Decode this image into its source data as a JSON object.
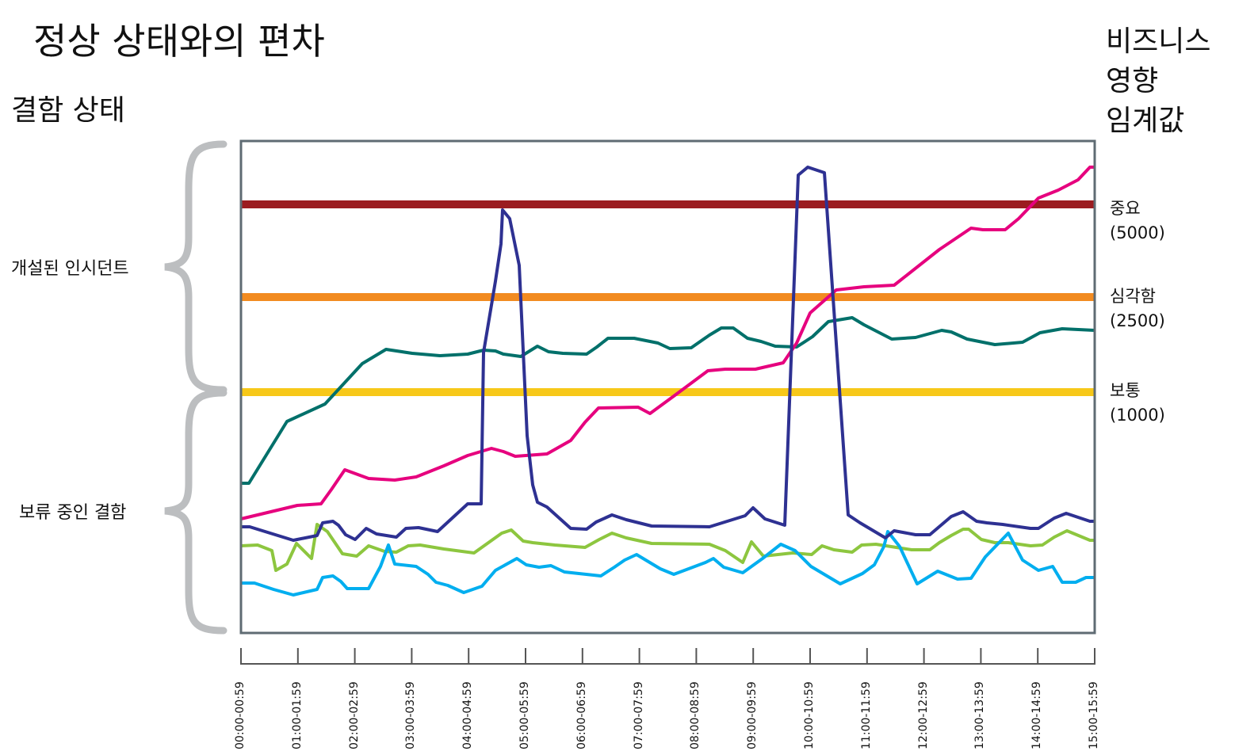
{
  "title": "정상 상태와의 편차",
  "subtitle": "결함 상태",
  "right_title": [
    "비즈니스",
    "영향",
    "임계값"
  ],
  "groups": [
    {
      "label": "개설된 인시던트"
    },
    {
      "label": "보류 중인 결함"
    }
  ],
  "thresholds": [
    {
      "name": "중요",
      "value": "(5000)",
      "color": "#9b1c20"
    },
    {
      "name": "심각함",
      "value": "(2500)",
      "color": "#f28b20"
    },
    {
      "name": "보통",
      "value": "(1000)",
      "color": "#f7c819"
    }
  ],
  "x_labels": [
    "00:00-00:59",
    "01:00-01:59",
    "02:00-02:59",
    "03:00-03:59",
    "04:00-04:59",
    "05:00-05:59",
    "06:00-06:59",
    "07:00-07:59",
    "08:00-08:59",
    "09:00-09:59",
    "10:00-10:59",
    "11:00-11:59",
    "12:00-12:59",
    "13:00-13:59",
    "14:00-14:59",
    "15:00-15:59"
  ],
  "series_colors": {
    "teal": "#00706a",
    "pink": "#e6007e",
    "navy": "#2e3192",
    "green": "#8dc63f",
    "blue": "#00aeef"
  },
  "frame_color": "#5f6b73",
  "brace_color": "#bcbec0"
}
